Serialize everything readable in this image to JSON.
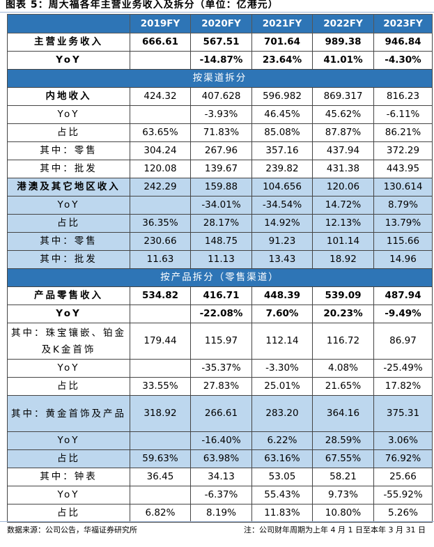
{
  "title": "图表 5：周大福各年主营业务收入及拆分（单位：亿港元）",
  "table": {
    "columns": [
      "",
      "2019FY",
      "2020FY",
      "2021FY",
      "2022FY",
      "2023FY"
    ],
    "rows": [
      {
        "label": "主营业务收入",
        "values": [
          "666.61",
          "567.51",
          "701.64",
          "989.38",
          "946.84"
        ],
        "bold": true
      },
      {
        "label": "YoY",
        "values": [
          "",
          "-14.87%",
          "23.64%",
          "41.01%",
          "-4.30%"
        ],
        "bold": true
      },
      {
        "section": "按渠道拆分"
      },
      {
        "label": "内地收入",
        "values": [
          "424.32",
          "407.628",
          "596.982",
          "869.317",
          "816.23"
        ],
        "label_bold": true
      },
      {
        "label": "YoY",
        "values": [
          "",
          "-3.93%",
          "46.45%",
          "45.62%",
          "-6.11%"
        ]
      },
      {
        "label": "占比",
        "values": [
          "63.65%",
          "71.83%",
          "85.08%",
          "87.87%",
          "86.21%"
        ]
      },
      {
        "label": "其中：零售",
        "values": [
          "304.24",
          "267.96",
          "357.16",
          "437.94",
          "372.29"
        ]
      },
      {
        "label": "其中：批发",
        "values": [
          "120.08",
          "139.67",
          "239.82",
          "431.38",
          "443.95"
        ]
      },
      {
        "label": "港澳及其它地区收入",
        "values": [
          "242.29",
          "159.88",
          "104.656",
          "120.06",
          "130.614"
        ],
        "label_bold": true,
        "highlight": true
      },
      {
        "label": "YoY",
        "values": [
          "",
          "-34.01%",
          "-34.54%",
          "14.72%",
          "8.79%"
        ],
        "highlight": true
      },
      {
        "label": "占比",
        "values": [
          "36.35%",
          "28.17%",
          "14.92%",
          "12.13%",
          "13.79%"
        ],
        "highlight": true
      },
      {
        "label": "其中：零售",
        "values": [
          "230.66",
          "148.75",
          "91.23",
          "101.14",
          "115.66"
        ],
        "highlight": true
      },
      {
        "label": "其中：批发",
        "values": [
          "11.63",
          "11.13",
          "13.43",
          "18.92",
          "14.96"
        ],
        "highlight": true
      },
      {
        "section": "按产品拆分（零售渠道）"
      },
      {
        "label": "产品零售收入",
        "values": [
          "534.82",
          "416.71",
          "448.39",
          "539.09",
          "487.94"
        ],
        "bold": true
      },
      {
        "label": "YoY",
        "values": [
          "",
          "-22.08%",
          "7.60%",
          "20.23%",
          "-9.49%"
        ],
        "bold": true
      },
      {
        "label": "其中：珠宝镶嵌、铂金及K金首饰",
        "values": [
          "179.44",
          "115.97",
          "112.14",
          "116.72",
          "86.97"
        ],
        "tall": true
      },
      {
        "label": "YoY",
        "values": [
          "",
          "-35.37%",
          "-3.30%",
          "4.08%",
          "-25.49%"
        ]
      },
      {
        "label": "占比",
        "values": [
          "33.55%",
          "27.83%",
          "25.01%",
          "21.65%",
          "17.82%"
        ]
      },
      {
        "label": "其中：黄金首饰及产品",
        "values": [
          "318.92",
          "266.61",
          "283.20",
          "364.16",
          "375.31"
        ],
        "tall": true,
        "highlight": true
      },
      {
        "label": "YoY",
        "values": [
          "",
          "-16.40%",
          "6.22%",
          "28.59%",
          "3.06%"
        ],
        "highlight": true
      },
      {
        "label": "占比",
        "values": [
          "59.63%",
          "63.98%",
          "63.16%",
          "67.55%",
          "76.92%"
        ],
        "highlight": true
      },
      {
        "label": "其中：钟表",
        "values": [
          "36.45",
          "34.13",
          "53.05",
          "58.21",
          "25.66"
        ]
      },
      {
        "label": "YoY",
        "values": [
          "",
          "-6.37%",
          "55.43%",
          "9.73%",
          "-55.92%"
        ]
      },
      {
        "label": "占比",
        "values": [
          "6.82%",
          "8.19%",
          "11.83%",
          "10.80%",
          "5.26%"
        ]
      }
    ]
  },
  "footer": {
    "source": "数据来源：公司公告，华福证券研究所",
    "note": "注：公司财年周期为上年 4 月 1 日至本年 3 月 31 日"
  },
  "colors": {
    "header_bg": "#2e75b6",
    "highlight_bg": "#bdd7ee"
  }
}
